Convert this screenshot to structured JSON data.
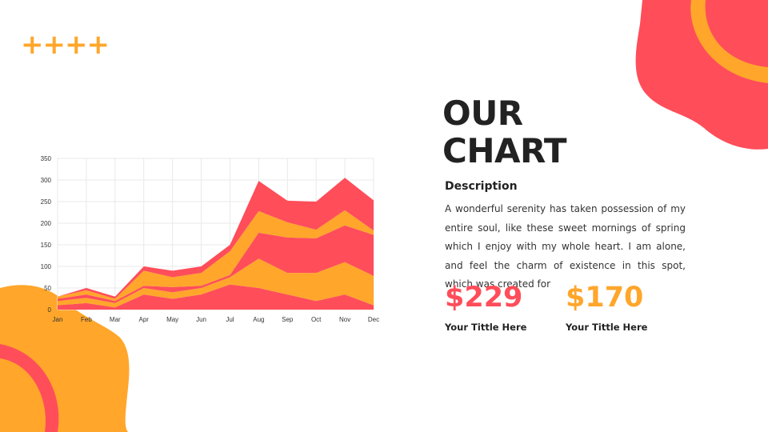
{
  "colors": {
    "red": "#ff4d5a",
    "orange": "#ffa62b",
    "dark": "#222222",
    "text": "#333333",
    "grid": "#e9e9e9"
  },
  "decor": {
    "plus_signs": "++++"
  },
  "slide": {
    "title_line1": "OUR",
    "title_line2": "CHART",
    "description_heading": "Description",
    "description_body": "A wonderful serenity has taken possession of my entire soul, like these sweet mornings of spring which I enjoy with my whole heart. I am alone, and feel the charm of existence in this spot, which was created for"
  },
  "stats": [
    {
      "value": "$229",
      "label": "Your Tittle Here",
      "color": "#ff4d5a"
    },
    {
      "value": "$170",
      "label": "Your Tittle Here",
      "color": "#ffa62b"
    }
  ],
  "chart_data": {
    "type": "area",
    "stacked": true,
    "categories": [
      "Jan",
      "Feb",
      "Mar",
      "Apr",
      "May",
      "Jun",
      "Jul",
      "Aug",
      "Sep",
      "Oct",
      "Nov",
      "Dec"
    ],
    "ylim": [
      0,
      350
    ],
    "yticks": [
      0,
      50,
      100,
      150,
      200,
      250,
      300,
      350
    ],
    "grid": true,
    "legend": "none",
    "series": [
      {
        "color": "#ff4d5a",
        "values": [
          10,
          15,
          5,
          35,
          25,
          35,
          58,
          50,
          35,
          20,
          35,
          10
        ]
      },
      {
        "color": "#ffa62b",
        "values": [
          10,
          12,
          10,
          15,
          15,
          15,
          17,
          68,
          50,
          65,
          75,
          68
        ]
      },
      {
        "color": "#ff4d5a",
        "values": [
          5,
          8,
          5,
          5,
          12,
          5,
          5,
          60,
          82,
          80,
          85,
          95
        ]
      },
      {
        "color": "#ffa62b",
        "values": [
          5,
          10,
          5,
          35,
          23,
          30,
          55,
          50,
          35,
          20,
          35,
          10
        ]
      },
      {
        "color": "#ff4d5a",
        "values": [
          0,
          5,
          5,
          10,
          15,
          15,
          15,
          70,
          50,
          65,
          75,
          70
        ]
      }
    ]
  }
}
